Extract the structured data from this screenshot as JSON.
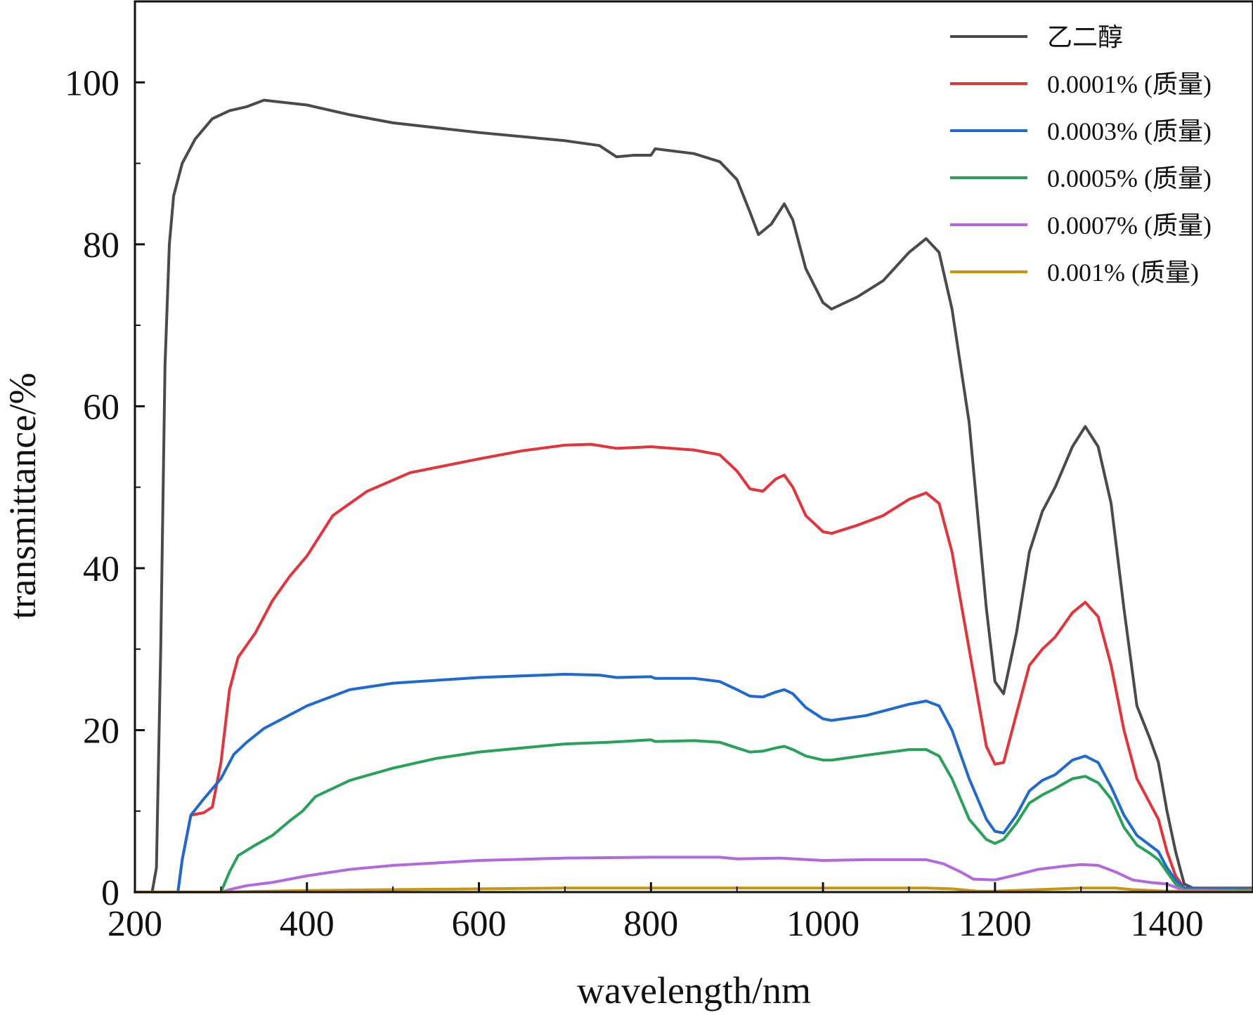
{
  "chart_data": {
    "type": "line",
    "xlabel": "wavelength/nm",
    "ylabel": "transmittance/%",
    "xlim": [
      200,
      1500
    ],
    "ylim": [
      0,
      110
    ],
    "xticks": [
      200,
      400,
      600,
      800,
      1000,
      1200,
      1400
    ],
    "yticks": [
      0,
      20,
      40,
      60,
      80,
      100
    ],
    "grid": false,
    "legend_position": "top-right",
    "series": [
      {
        "name": "乙二醇",
        "color": "#4a4a4a",
        "points": [
          [
            200,
            0
          ],
          [
            220,
            0
          ],
          [
            225,
            3
          ],
          [
            230,
            30
          ],
          [
            235,
            65
          ],
          [
            240,
            80
          ],
          [
            245,
            86
          ],
          [
            255,
            90
          ],
          [
            270,
            93
          ],
          [
            290,
            95.5
          ],
          [
            310,
            96.5
          ],
          [
            330,
            97
          ],
          [
            350,
            97.8
          ],
          [
            400,
            97.2
          ],
          [
            450,
            96
          ],
          [
            500,
            95
          ],
          [
            600,
            93.8
          ],
          [
            700,
            92.8
          ],
          [
            740,
            92.2
          ],
          [
            760,
            90.8
          ],
          [
            780,
            91
          ],
          [
            800,
            91
          ],
          [
            805,
            91.8
          ],
          [
            850,
            91.2
          ],
          [
            880,
            90.2
          ],
          [
            900,
            88
          ],
          [
            915,
            84
          ],
          [
            925,
            81.2
          ],
          [
            940,
            82.5
          ],
          [
            955,
            85
          ],
          [
            965,
            83
          ],
          [
            980,
            77
          ],
          [
            1000,
            72.8
          ],
          [
            1010,
            72
          ],
          [
            1040,
            73.5
          ],
          [
            1070,
            75.5
          ],
          [
            1100,
            79
          ],
          [
            1120,
            80.7
          ],
          [
            1135,
            79
          ],
          [
            1150,
            72
          ],
          [
            1170,
            58
          ],
          [
            1190,
            35
          ],
          [
            1200,
            26
          ],
          [
            1210,
            24.5
          ],
          [
            1225,
            32
          ],
          [
            1240,
            42
          ],
          [
            1255,
            47
          ],
          [
            1270,
            50
          ],
          [
            1290,
            55
          ],
          [
            1305,
            57.5
          ],
          [
            1320,
            55
          ],
          [
            1335,
            48
          ],
          [
            1350,
            35
          ],
          [
            1365,
            23
          ],
          [
            1380,
            19
          ],
          [
            1390,
            16
          ],
          [
            1400,
            10
          ],
          [
            1410,
            5
          ],
          [
            1420,
            1
          ],
          [
            1430,
            0.5
          ],
          [
            1500,
            0.5
          ]
        ]
      },
      {
        "name": "0.0001% (质量)",
        "color": "#e8323a",
        "points": [
          [
            200,
            0
          ],
          [
            250,
            0
          ],
          [
            255,
            4
          ],
          [
            265,
            9.5
          ],
          [
            280,
            9.8
          ],
          [
            290,
            10.5
          ],
          [
            300,
            16
          ],
          [
            310,
            25
          ],
          [
            320,
            29
          ],
          [
            340,
            32
          ],
          [
            360,
            36
          ],
          [
            380,
            39
          ],
          [
            400,
            41.5
          ],
          [
            430,
            46.5
          ],
          [
            470,
            49.5
          ],
          [
            520,
            51.8
          ],
          [
            600,
            53.5
          ],
          [
            650,
            54.5
          ],
          [
            700,
            55.2
          ],
          [
            730,
            55.3
          ],
          [
            760,
            54.8
          ],
          [
            800,
            55
          ],
          [
            850,
            54.6
          ],
          [
            880,
            54
          ],
          [
            900,
            52
          ],
          [
            915,
            49.8
          ],
          [
            930,
            49.5
          ],
          [
            945,
            51
          ],
          [
            955,
            51.5
          ],
          [
            965,
            50
          ],
          [
            980,
            46.5
          ],
          [
            1000,
            44.5
          ],
          [
            1010,
            44.3
          ],
          [
            1040,
            45.3
          ],
          [
            1070,
            46.5
          ],
          [
            1100,
            48.5
          ],
          [
            1120,
            49.3
          ],
          [
            1135,
            48
          ],
          [
            1150,
            42
          ],
          [
            1170,
            30
          ],
          [
            1190,
            18
          ],
          [
            1200,
            15.8
          ],
          [
            1210,
            16
          ],
          [
            1225,
            22
          ],
          [
            1240,
            28
          ],
          [
            1255,
            30
          ],
          [
            1270,
            31.5
          ],
          [
            1290,
            34.5
          ],
          [
            1305,
            35.8
          ],
          [
            1320,
            34
          ],
          [
            1335,
            28
          ],
          [
            1350,
            20
          ],
          [
            1365,
            14
          ],
          [
            1380,
            11
          ],
          [
            1390,
            9
          ],
          [
            1400,
            5
          ],
          [
            1410,
            2
          ],
          [
            1420,
            0.5
          ],
          [
            1500,
            0.4
          ]
        ]
      },
      {
        "name": "0.0003% (质量)",
        "color": "#1f6ad1",
        "points": [
          [
            200,
            0
          ],
          [
            250,
            0
          ],
          [
            255,
            4
          ],
          [
            265,
            9.5
          ],
          [
            280,
            11.5
          ],
          [
            300,
            14
          ],
          [
            315,
            17
          ],
          [
            330,
            18.5
          ],
          [
            350,
            20.2
          ],
          [
            400,
            23
          ],
          [
            450,
            25
          ],
          [
            500,
            25.8
          ],
          [
            600,
            26.5
          ],
          [
            700,
            26.9
          ],
          [
            740,
            26.8
          ],
          [
            760,
            26.5
          ],
          [
            800,
            26.6
          ],
          [
            805,
            26.4
          ],
          [
            850,
            26.4
          ],
          [
            880,
            26
          ],
          [
            900,
            25
          ],
          [
            915,
            24.2
          ],
          [
            930,
            24.1
          ],
          [
            945,
            24.7
          ],
          [
            955,
            25
          ],
          [
            965,
            24.5
          ],
          [
            980,
            22.8
          ],
          [
            1000,
            21.4
          ],
          [
            1010,
            21.2
          ],
          [
            1050,
            21.8
          ],
          [
            1100,
            23.2
          ],
          [
            1120,
            23.6
          ],
          [
            1135,
            23
          ],
          [
            1150,
            20
          ],
          [
            1170,
            14
          ],
          [
            1190,
            9
          ],
          [
            1200,
            7.5
          ],
          [
            1210,
            7.3
          ],
          [
            1225,
            9.5
          ],
          [
            1240,
            12.5
          ],
          [
            1255,
            13.8
          ],
          [
            1270,
            14.5
          ],
          [
            1290,
            16.3
          ],
          [
            1305,
            16.8
          ],
          [
            1320,
            16
          ],
          [
            1335,
            13
          ],
          [
            1350,
            9.5
          ],
          [
            1365,
            7
          ],
          [
            1380,
            5.8
          ],
          [
            1390,
            5
          ],
          [
            1400,
            3
          ],
          [
            1410,
            1.5
          ],
          [
            1420,
            0.5
          ],
          [
            1500,
            0.3
          ]
        ]
      },
      {
        "name": "0.0005% (质量)",
        "color": "#27a259",
        "points": [
          [
            200,
            0
          ],
          [
            300,
            0
          ],
          [
            310,
            2.5
          ],
          [
            320,
            4.5
          ],
          [
            340,
            5.8
          ],
          [
            360,
            7
          ],
          [
            380,
            8.8
          ],
          [
            395,
            10
          ],
          [
            410,
            11.8
          ],
          [
            450,
            13.8
          ],
          [
            500,
            15.3
          ],
          [
            550,
            16.5
          ],
          [
            600,
            17.3
          ],
          [
            700,
            18.3
          ],
          [
            750,
            18.5
          ],
          [
            800,
            18.8
          ],
          [
            805,
            18.6
          ],
          [
            850,
            18.7
          ],
          [
            880,
            18.5
          ],
          [
            900,
            17.8
          ],
          [
            915,
            17.3
          ],
          [
            930,
            17.4
          ],
          [
            945,
            17.8
          ],
          [
            955,
            18
          ],
          [
            965,
            17.6
          ],
          [
            980,
            16.8
          ],
          [
            1000,
            16.3
          ],
          [
            1010,
            16.3
          ],
          [
            1050,
            16.9
          ],
          [
            1100,
            17.6
          ],
          [
            1120,
            17.6
          ],
          [
            1135,
            16.8
          ],
          [
            1150,
            14
          ],
          [
            1170,
            9
          ],
          [
            1190,
            6.5
          ],
          [
            1200,
            6
          ],
          [
            1210,
            6.5
          ],
          [
            1225,
            8.5
          ],
          [
            1240,
            11
          ],
          [
            1255,
            12
          ],
          [
            1270,
            12.8
          ],
          [
            1290,
            14
          ],
          [
            1305,
            14.3
          ],
          [
            1320,
            13.5
          ],
          [
            1335,
            11.5
          ],
          [
            1350,
            8
          ],
          [
            1365,
            5.8
          ],
          [
            1380,
            4.8
          ],
          [
            1390,
            4
          ],
          [
            1400,
            2.5
          ],
          [
            1410,
            1
          ],
          [
            1420,
            0.3
          ],
          [
            1500,
            0.2
          ]
        ]
      },
      {
        "name": "0.0007% (质量)",
        "color": "#b368e0",
        "points": [
          [
            200,
            0
          ],
          [
            300,
            0
          ],
          [
            310,
            0.3
          ],
          [
            330,
            0.8
          ],
          [
            360,
            1.2
          ],
          [
            400,
            2
          ],
          [
            450,
            2.8
          ],
          [
            500,
            3.3
          ],
          [
            600,
            3.9
          ],
          [
            700,
            4.2
          ],
          [
            800,
            4.3
          ],
          [
            880,
            4.3
          ],
          [
            900,
            4.1
          ],
          [
            950,
            4.2
          ],
          [
            1000,
            3.9
          ],
          [
            1050,
            4
          ],
          [
            1100,
            4
          ],
          [
            1120,
            4
          ],
          [
            1140,
            3.5
          ],
          [
            1160,
            2.5
          ],
          [
            1175,
            1.6
          ],
          [
            1200,
            1.5
          ],
          [
            1220,
            2
          ],
          [
            1250,
            2.8
          ],
          [
            1280,
            3.2
          ],
          [
            1300,
            3.4
          ],
          [
            1320,
            3.3
          ],
          [
            1340,
            2.5
          ],
          [
            1360,
            1.5
          ],
          [
            1380,
            1.2
          ],
          [
            1400,
            1
          ],
          [
            1420,
            0.2
          ],
          [
            1500,
            0.1
          ]
        ]
      },
      {
        "name": "0.001% (质量)",
        "color": "#c9950f",
        "points": [
          [
            200,
            0
          ],
          [
            300,
            0
          ],
          [
            400,
            0.2
          ],
          [
            500,
            0.3
          ],
          [
            600,
            0.4
          ],
          [
            700,
            0.5
          ],
          [
            800,
            0.5
          ],
          [
            900,
            0.5
          ],
          [
            1000,
            0.5
          ],
          [
            1120,
            0.5
          ],
          [
            1150,
            0.4
          ],
          [
            1180,
            0.1
          ],
          [
            1200,
            0.1
          ],
          [
            1250,
            0.3
          ],
          [
            1300,
            0.5
          ],
          [
            1340,
            0.5
          ],
          [
            1360,
            0.3
          ],
          [
            1400,
            0.1
          ],
          [
            1500,
            0.1
          ]
        ]
      }
    ]
  }
}
